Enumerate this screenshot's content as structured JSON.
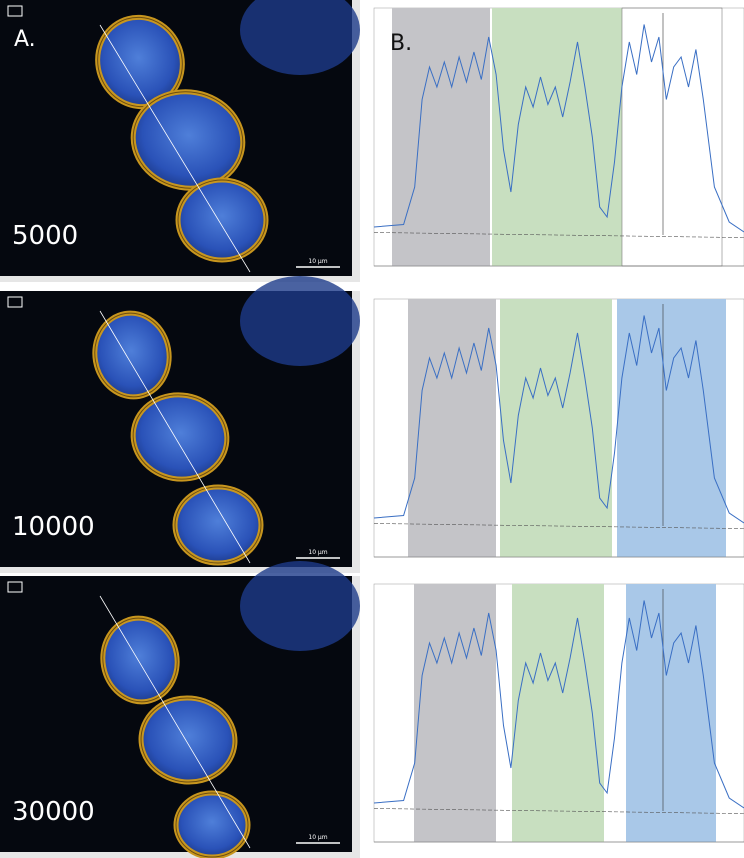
{
  "labels": {
    "a": "A.",
    "b": "B."
  },
  "rows": [
    {
      "threshold": "5000",
      "scale_bar": "10 µm"
    },
    {
      "threshold": "10000",
      "scale_bar": "10 µm"
    },
    {
      "threshold": "30000",
      "scale_bar": "10 µm"
    }
  ]
}
